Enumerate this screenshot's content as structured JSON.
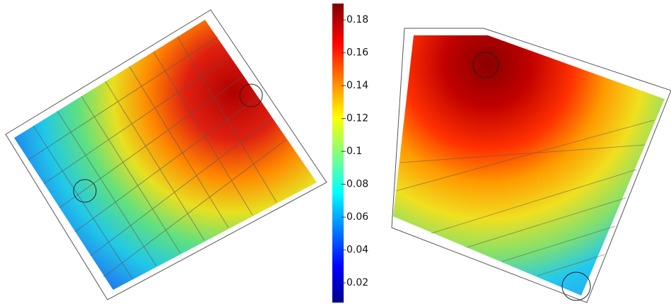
{
  "colorbar": {
    "lim": [
      0.008,
      0.19
    ],
    "ticks": [
      0.18,
      0.16,
      0.14,
      0.12,
      0.1,
      0.08,
      0.06,
      0.04,
      0.02
    ]
  }
}
